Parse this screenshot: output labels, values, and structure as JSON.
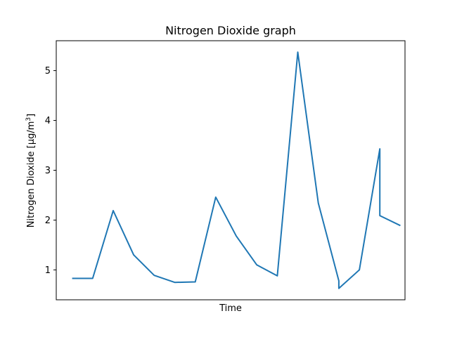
{
  "chart_data": {
    "type": "line",
    "title": "Nitrogen Dioxide graph",
    "xlabel": "Time",
    "ylabel_main": "Nitrogen Dioxide [μg/m",
    "ylabel_sup": "3",
    "ylabel_end": "]",
    "ylim": [
      0.4,
      5.6
    ],
    "xlim": [
      0,
      17
    ],
    "x_ticks_visible": false,
    "grid": false,
    "line_color": "#1f77b4",
    "y_ticks": [
      1,
      2,
      3,
      4,
      5
    ],
    "y_tick_labels": [
      "1",
      "2",
      "3",
      "4",
      "5"
    ],
    "series": [
      {
        "x": [
          0,
          1,
          2,
          3,
          4,
          5,
          6,
          7,
          8,
          9,
          10,
          11,
          12,
          13,
          13,
          14,
          15,
          15,
          16
        ],
        "values": [
          0.83,
          0.83,
          2.19,
          1.3,
          0.89,
          0.75,
          0.76,
          2.46,
          1.68,
          1.1,
          0.88,
          5.37,
          2.34,
          0.78,
          0.63,
          1.0,
          3.43,
          2.09,
          1.89
        ]
      }
    ]
  }
}
